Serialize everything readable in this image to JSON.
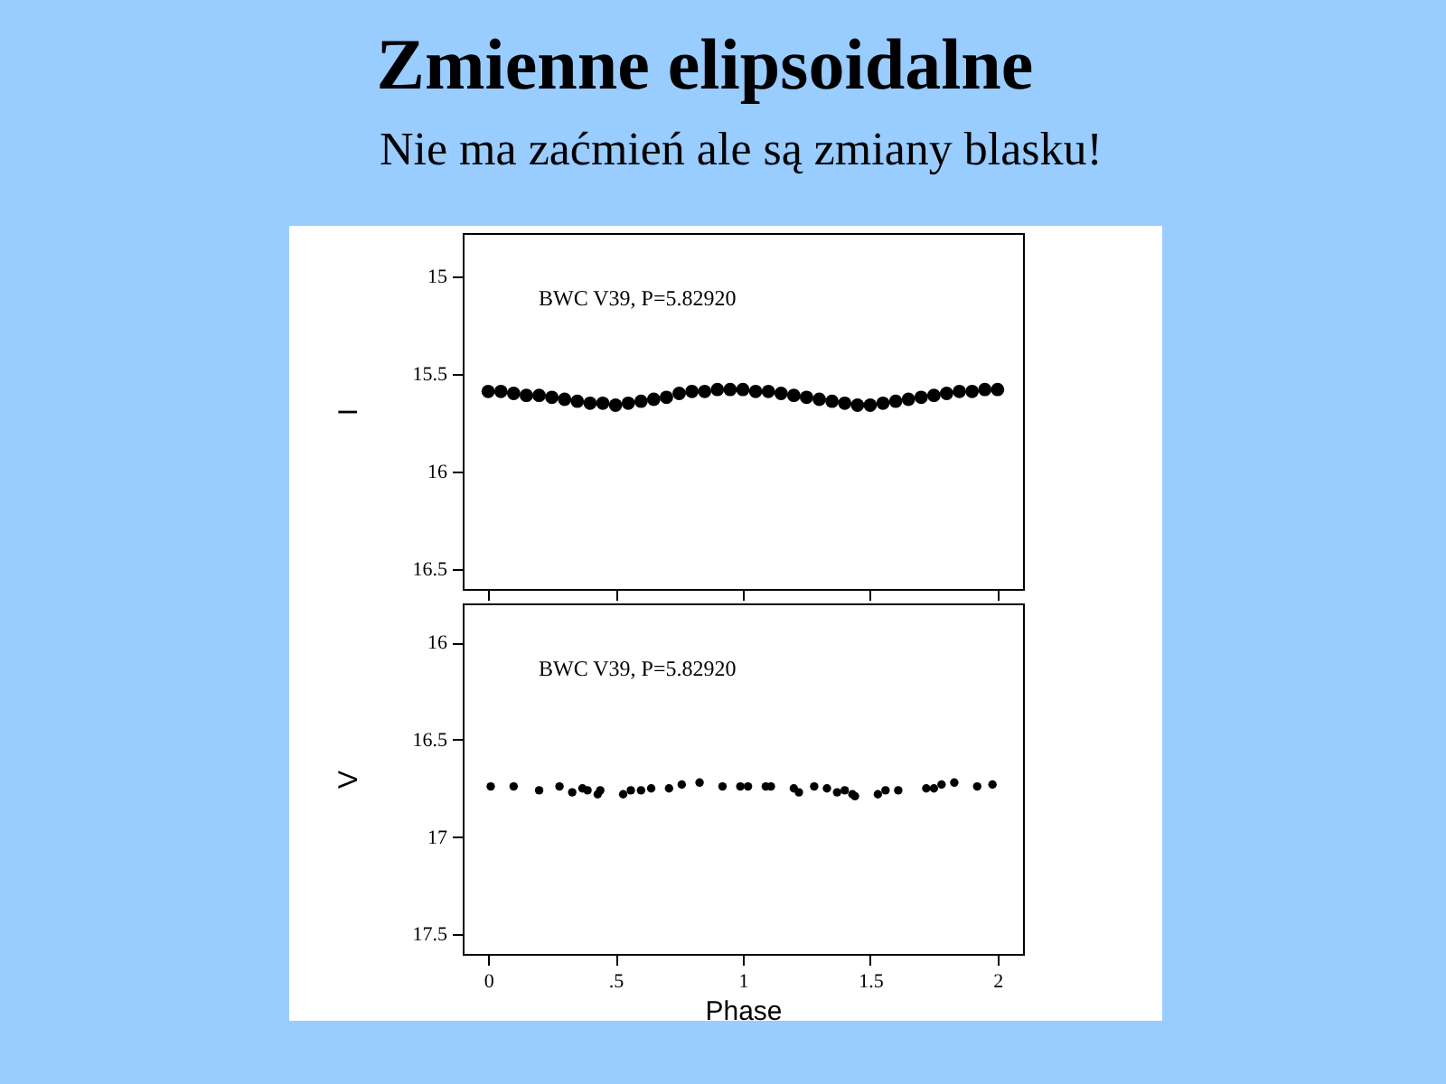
{
  "chart_data": [
    {
      "type": "scatter",
      "title": "Zmienne elipsoidalne",
      "subtitle": "Nie ma zaćmień ale są zmiany blasku!",
      "ylabel": "I",
      "annotations": [
        "BWC V39, P=5.82920"
      ],
      "tick_labels": "y",
      "marker": "circle",
      "grid": false,
      "xlim": [
        -0.1,
        2.1
      ],
      "xticks": [
        0,
        0.5,
        1,
        1.5,
        2
      ],
      "ylim": [
        16.6,
        14.78
      ],
      "yticks": [
        15,
        15.5,
        16,
        16.5
      ],
      "x": [
        0,
        0.05,
        0.1,
        0.15,
        0.2,
        0.25,
        0.3,
        0.35,
        0.4,
        0.45,
        0.5,
        0.55,
        0.6,
        0.65,
        0.7,
        0.75,
        0.8,
        0.85,
        0.9,
        0.95,
        1,
        1.05,
        1.1,
        1.15,
        1.2,
        1.25,
        1.3,
        1.35,
        1.4,
        1.45,
        1.5,
        1.55,
        1.6,
        1.65,
        1.7,
        1.75,
        1.8,
        1.85,
        1.9,
        1.95,
        2
      ],
      "series": [
        {
          "color": "#000000",
          "values": [
            15.59,
            15.59,
            15.6,
            15.61,
            15.61,
            15.62,
            15.63,
            15.64,
            15.65,
            15.65,
            15.66,
            15.65,
            15.64,
            15.63,
            15.62,
            15.6,
            15.59,
            15.59,
            15.58,
            15.58,
            15.58,
            15.59,
            15.59,
            15.6,
            15.61,
            15.62,
            15.63,
            15.64,
            15.65,
            15.66,
            15.66,
            15.65,
            15.64,
            15.63,
            15.62,
            15.61,
            15.6,
            15.59,
            15.59,
            15.58,
            15.58
          ]
        }
      ]
    },
    {
      "type": "scatter",
      "xlabel": "Phase",
      "ylabel": "V",
      "annotations": [
        "BWC V39, P=5.82920"
      ],
      "marker": "circle",
      "grid": false,
      "xlim": [
        -0.1,
        2.1
      ],
      "xticks": [
        0,
        {
          "value": 0.5,
          "label": ".5"
        },
        1,
        1.5,
        2
      ],
      "ylim": [
        17.6,
        15.8
      ],
      "yticks": [
        16,
        16.5,
        17,
        17.5
      ],
      "x": [
        0.01,
        0.1,
        0.2,
        0.28,
        0.33,
        0.37,
        0.39,
        0.43,
        0.44,
        0.53,
        0.56,
        0.6,
        0.64,
        0.71,
        0.76,
        0.83,
        0.92,
        0.99,
        1.02,
        1.09,
        1.11,
        1.2,
        1.22,
        1.28,
        1.33,
        1.37,
        1.4,
        1.43,
        1.44,
        1.53,
        1.56,
        1.61,
        1.72,
        1.75,
        1.78,
        1.83,
        1.92,
        1.98
      ],
      "series": [
        {
          "color": "#000000",
          "values": [
            16.74,
            16.74,
            16.76,
            16.74,
            16.77,
            16.75,
            16.76,
            16.78,
            16.76,
            16.78,
            16.76,
            16.76,
            16.75,
            16.75,
            16.73,
            16.72,
            16.74,
            16.74,
            16.74,
            16.74,
            16.74,
            16.75,
            16.77,
            16.74,
            16.75,
            16.77,
            16.76,
            16.78,
            16.79,
            16.78,
            16.76,
            16.76,
            16.75,
            16.75,
            16.73,
            16.72,
            16.74,
            16.73
          ]
        }
      ]
    }
  ]
}
